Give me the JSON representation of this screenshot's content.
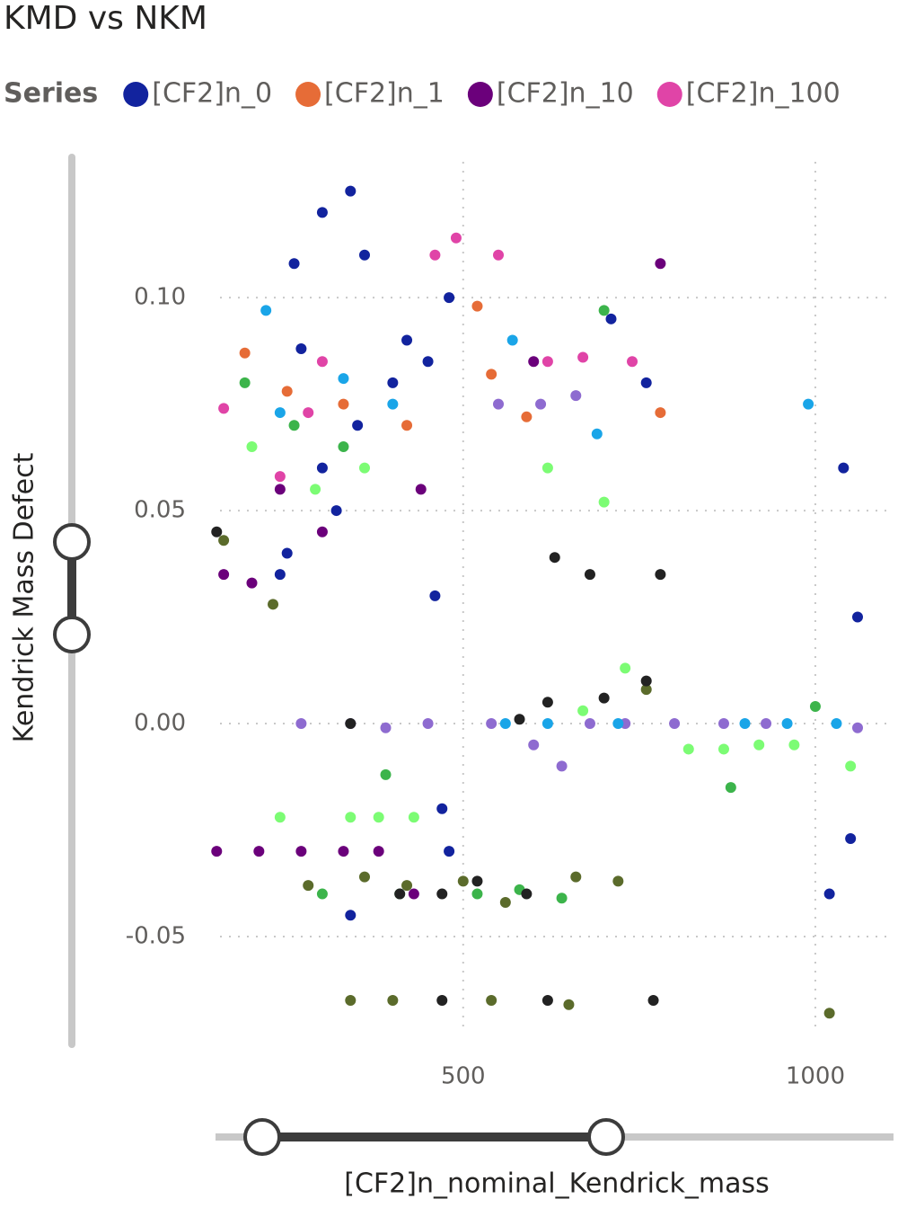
{
  "chart_data": {
    "type": "scatter",
    "title": "KMD vs NKM",
    "legend_title": "Series",
    "x_label": "[CF2]n_nominal_Kendrick_mass",
    "y_label": "Kendrick Mass Defect",
    "xlim": [
      142,
      1111
    ],
    "ylim": [
      -0.0766,
      0.134
    ],
    "xticks": [
      500,
      1000
    ],
    "yticks": [
      {
        "value": 0.1,
        "label": "0.10"
      },
      0.05,
      {
        "value": 0,
        "label": "0.00"
      },
      -0.05
    ],
    "grid": true,
    "series": [
      {
        "name": "[CF2]n_0",
        "color": "#12239e",
        "x": [
          300,
          320,
          350,
          400,
          420,
          450,
          480,
          360,
          300,
          340,
          260,
          270,
          250,
          240,
          460,
          470,
          480,
          340,
          760,
          1040,
          1060,
          1050,
          1020,
          710
        ],
        "values": [
          0.06,
          0.05,
          0.07,
          0.08,
          0.09,
          0.085,
          0.1,
          0.11,
          0.12,
          0.125,
          0.108,
          0.088,
          0.04,
          0.035,
          0.03,
          -0.02,
          -0.03,
          -0.045,
          0.08,
          0.06,
          0.025,
          -0.027,
          -0.04,
          0.095
        ]
      },
      {
        "name": "[CF2]n_1",
        "color": "#e66c37",
        "x": [
          190,
          250,
          330,
          420,
          520,
          540,
          590,
          780
        ],
        "values": [
          0.087,
          0.078,
          0.075,
          0.07,
          0.098,
          0.082,
          0.072,
          0.073
        ]
      },
      {
        "name": "[CF2]n_10",
        "color": "#6b007b",
        "x": [
          160,
          200,
          240,
          300,
          440,
          780,
          150,
          210,
          270,
          330,
          380,
          430,
          600
        ],
        "values": [
          0.035,
          0.033,
          0.055,
          0.045,
          0.055,
          0.108,
          -0.03,
          -0.03,
          -0.03,
          -0.03,
          -0.03,
          -0.04,
          0.085
        ]
      },
      {
        "name": "[CF2]n_100",
        "color": "#e044a7",
        "x": [
          160,
          240,
          300,
          460,
          490,
          550,
          620,
          670,
          740,
          280
        ],
        "values": [
          0.074,
          0.058,
          0.085,
          0.11,
          0.114,
          0.11,
          0.085,
          0.086,
          0.085,
          0.073
        ]
      },
      {
        "color": "#3cb44b",
        "x": [
          190,
          260,
          330,
          390,
          410,
          520,
          580,
          640,
          880,
          1000,
          300,
          700
        ],
        "values": [
          0.08,
          0.07,
          0.065,
          -0.012,
          -0.04,
          -0.04,
          -0.039,
          -0.041,
          -0.015,
          0.004,
          -0.04,
          0.097
        ]
      },
      {
        "color": "#5b6b2b",
        "x": [
          160,
          230,
          280,
          360,
          420,
          500,
          560,
          660,
          720,
          340,
          400,
          540,
          650,
          760,
          1020
        ],
        "values": [
          0.043,
          0.028,
          -0.038,
          -0.036,
          -0.038,
          -0.037,
          -0.042,
          -0.036,
          -0.037,
          -0.065,
          -0.065,
          -0.065,
          -0.066,
          0.008,
          -0.068
        ]
      },
      {
        "color": "#7cfc74",
        "x": [
          200,
          290,
          360,
          620,
          700,
          820,
          870,
          920,
          970,
          1050,
          340,
          380,
          430,
          240,
          730,
          670
        ],
        "values": [
          0.065,
          0.055,
          0.06,
          0.06,
          0.052,
          -0.006,
          -0.006,
          -0.005,
          -0.005,
          -0.01,
          -0.022,
          -0.022,
          -0.022,
          -0.022,
          0.013,
          0.003
        ]
      },
      {
        "color": "#8e6bd0",
        "x": [
          270,
          340,
          390,
          450,
          540,
          600,
          680,
          730,
          800,
          870,
          930,
          1060,
          610,
          660,
          550,
          640
        ],
        "values": [
          0,
          0,
          -0.001,
          0,
          0,
          -0.005,
          0,
          0,
          0,
          0,
          0,
          -0.001,
          0.075,
          0.077,
          0.075,
          -0.01
        ]
      },
      {
        "color": "#1aa5e8",
        "x": [
          220,
          240,
          330,
          400,
          570,
          690,
          990,
          560,
          720,
          900,
          960,
          1030,
          620
        ],
        "values": [
          0.097,
          0.073,
          0.081,
          0.075,
          0.09,
          0.068,
          0.075,
          0,
          0,
          0,
          0,
          0,
          0
        ]
      },
      {
        "color": "#222222",
        "x": [
          340,
          580,
          620,
          700,
          760,
          630,
          680,
          780,
          410,
          470,
          520,
          590,
          770,
          470,
          620,
          150
        ],
        "values": [
          0,
          0.001,
          0.005,
          0.006,
          0.01,
          0.039,
          0.035,
          0.035,
          -0.04,
          -0.04,
          -0.037,
          -0.04,
          -0.065,
          -0.065,
          -0.065,
          0.045
        ]
      }
    ]
  }
}
